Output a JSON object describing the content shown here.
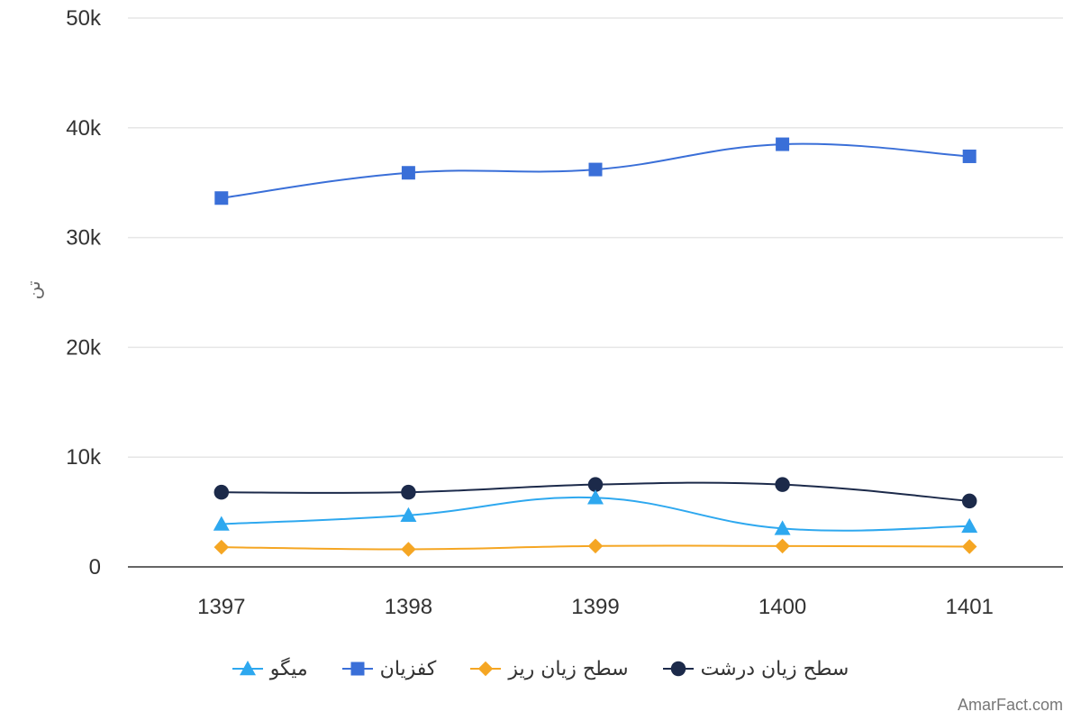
{
  "chart_data": {
    "type": "line",
    "title": "",
    "xlabel": "",
    "ylabel": "تن",
    "categories": [
      "1397",
      "1398",
      "1399",
      "1400",
      "1401"
    ],
    "ylim": [
      0,
      50000
    ],
    "yticks": [
      "0",
      "10k",
      "20k",
      "30k",
      "40k",
      "50k"
    ],
    "ytick_values": [
      0,
      10000,
      20000,
      30000,
      40000,
      50000
    ],
    "grid": true,
    "legend_position": "bottom",
    "series": [
      {
        "name": "سطح زیان درشت",
        "color": "#1c2a4a",
        "marker": "circle",
        "values": [
          6800,
          6800,
          7500,
          7500,
          6000
        ]
      },
      {
        "name": "سطح زیان ریز",
        "color": "#f5a623",
        "marker": "diamond",
        "values": [
          1800,
          1600,
          1900,
          1900,
          1850
        ]
      },
      {
        "name": "کفزیان",
        "color": "#3a6fd8",
        "marker": "square",
        "values": [
          33600,
          35900,
          36200,
          38500,
          37400
        ]
      },
      {
        "name": "میگو",
        "color": "#2ea8ef",
        "marker": "triangle",
        "values": [
          3900,
          4700,
          6300,
          3500,
          3700
        ]
      }
    ]
  },
  "credit": "AmarFact.com"
}
